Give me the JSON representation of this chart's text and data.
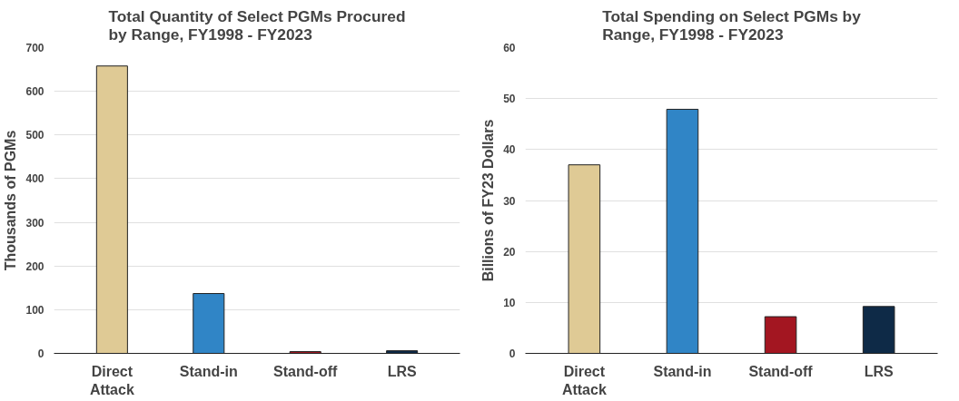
{
  "chart_data": [
    {
      "type": "bar",
      "title": "Total Quantity of Select PGMs Procured by Range, FY1998 - FY2023",
      "ylabel": "Thousands of PGMs",
      "categories": [
        "Direct Attack",
        "Stand-in",
        "Stand-off",
        "LRS"
      ],
      "values": [
        658,
        137,
        4,
        6
      ],
      "colors": [
        "#dfca95",
        "#3085c6",
        "#a31621",
        "#0e2a47"
      ],
      "ylim": [
        0,
        700
      ],
      "yticks": [
        0,
        100,
        200,
        300,
        400,
        500,
        600,
        700
      ],
      "grid": "y"
    },
    {
      "type": "bar",
      "title": "Total Spending on Select PGMs by Range, FY1998 - FY2023",
      "ylabel": "Billions of FY23 Dollars",
      "categories": [
        "Direct Attack",
        "Stand-in",
        "Stand-off",
        "LRS"
      ],
      "values": [
        37,
        47.9,
        7.2,
        9.2
      ],
      "colors": [
        "#dfca95",
        "#3085c6",
        "#a31621",
        "#0e2a47"
      ],
      "ylim": [
        0,
        60
      ],
      "yticks": [
        0,
        10,
        20,
        30,
        40,
        50,
        60
      ],
      "grid": "y"
    }
  ]
}
